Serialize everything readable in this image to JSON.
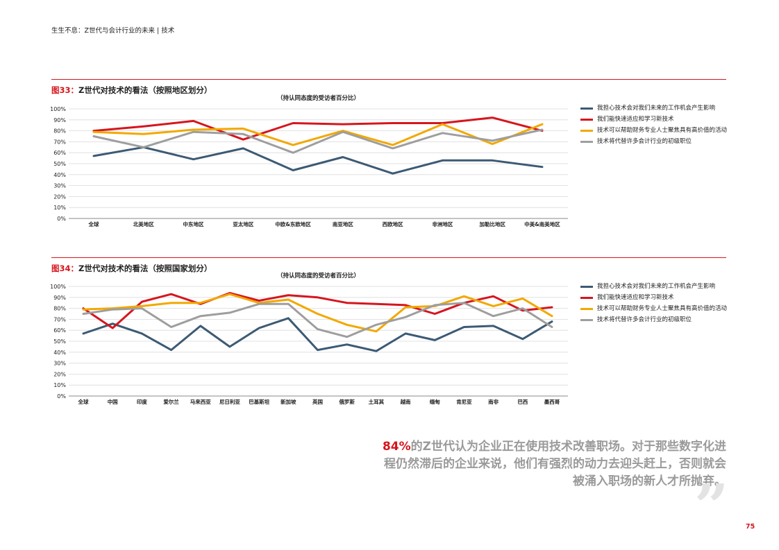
{
  "header": {
    "text": "生生不息：Z世代与会计行业的未来 | 技术"
  },
  "colors": {
    "accent": "#d6151d",
    "series": [
      "#3c5a74",
      "#d6151d",
      "#f2a800",
      "#9e9e9e"
    ]
  },
  "legend_labels": [
    "我担心技术会对我们未来的工作机会产生影响",
    "我们能快速适应和学习新技术",
    "技术可以帮助财务专业人士聚焦具有高价值的活动",
    "技术将代替许多会计行业的初级职位"
  ],
  "fig33": {
    "num": "图33：",
    "title": "Z世代对技术的看法（按照地区划分）",
    "subtitle": "（持认同态度的受访者百分比）"
  },
  "fig34": {
    "num": "图34：",
    "title": "Z世代对技术的看法（按照国家划分）",
    "subtitle": "（持认同态度的受访者百分比）"
  },
  "quote": {
    "highlight": "84%",
    "text": "的Z世代认为企业正在使用技术改善职场。对于那些数字化进程仍然滞后的企业来说，他们有强烈的动力去迎头赶上，否则就会被涌入职场的新人才所抛弃。",
    "mark": "”"
  },
  "page_number": "75",
  "chart_data": [
    {
      "type": "line",
      "categories": [
        "全球",
        "北美地区",
        "中东地区",
        "亚太地区",
        "中欧&东欧地区",
        "南亚地区",
        "西欧地区",
        "非洲地区",
        "加勒比地区",
        "中美&南美地区"
      ],
      "yticks": [
        "0%",
        "10%",
        "20%",
        "30%",
        "40%",
        "50%",
        "60%",
        "70%",
        "80%",
        "90%",
        "100%"
      ],
      "ylim": [
        0,
        100
      ],
      "series": [
        {
          "name": "我担心技术会对我们未来的工作机会产生影响",
          "values": [
            57,
            65,
            54,
            64,
            44,
            56,
            41,
            53,
            53,
            47
          ]
        },
        {
          "name": "我们能快速适应和学习新技术",
          "values": [
            80,
            84,
            89,
            72,
            87,
            86,
            87,
            87,
            92,
            80
          ]
        },
        {
          "name": "技术可以帮助财务专业人士聚焦具有高价值的活动",
          "values": [
            79,
            77,
            81,
            82,
            67,
            80,
            67,
            86,
            68,
            86
          ]
        },
        {
          "name": "技术将代替许多会计行业的初级职位",
          "values": [
            75,
            65,
            79,
            77,
            60,
            79,
            64,
            78,
            71,
            81
          ]
        }
      ]
    },
    {
      "type": "line",
      "categories": [
        "全球",
        "中国",
        "印度",
        "爱尔兰",
        "马来西亚",
        "尼日利亚",
        "巴基斯坦",
        "新加坡",
        "英国",
        "俄罗斯",
        "土耳其",
        "越南",
        "缅甸",
        "肯尼亚",
        "南非",
        "巴西",
        "墨西哥"
      ],
      "yticks": [
        "0%",
        "10%",
        "20%",
        "30%",
        "40%",
        "50%",
        "60%",
        "70%",
        "80%",
        "90%",
        "100%"
      ],
      "ylim": [
        0,
        100
      ],
      "series": [
        {
          "name": "我担心技术会对我们未来的工作机会产生影响",
          "values": [
            57,
            66,
            57,
            42,
            64,
            45,
            62,
            71,
            42,
            47,
            41,
            57,
            51,
            63,
            64,
            52,
            68
          ]
        },
        {
          "name": "我们能快速适应和学习新技术",
          "values": [
            80,
            62,
            86,
            93,
            84,
            94,
            87,
            92,
            90,
            85,
            84,
            83,
            75,
            85,
            91,
            78,
            81
          ]
        },
        {
          "name": "技术可以帮助财务专业人士聚焦具有高价值的活动",
          "values": [
            79,
            80,
            82,
            85,
            85,
            93,
            85,
            88,
            75,
            65,
            59,
            81,
            82,
            91,
            82,
            89,
            73
          ]
        },
        {
          "name": "技术将代替许多会计行业的初级职位",
          "values": [
            75,
            79,
            80,
            63,
            73,
            76,
            84,
            84,
            61,
            54,
            65,
            72,
            83,
            85,
            73,
            80,
            63
          ]
        }
      ]
    }
  ]
}
